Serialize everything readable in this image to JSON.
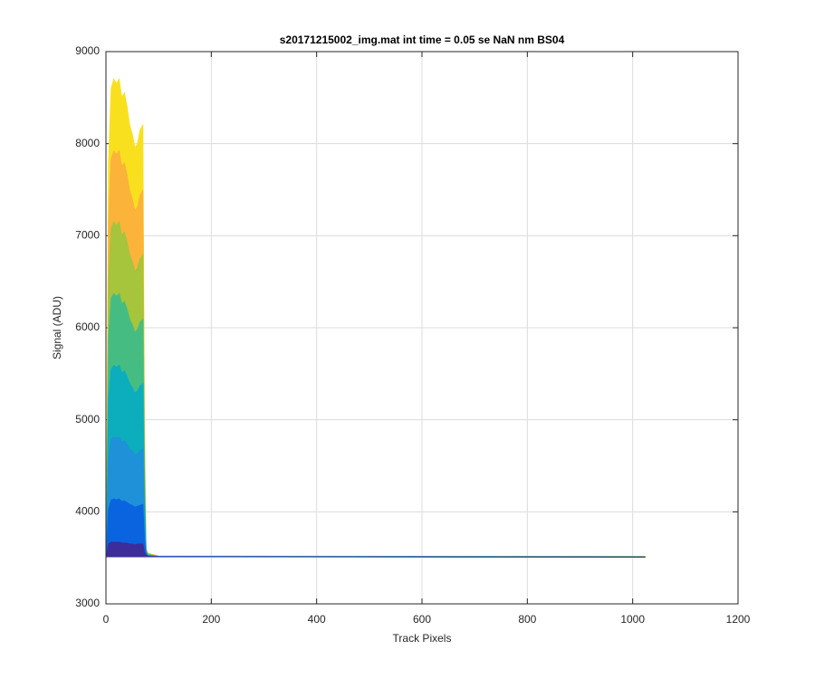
{
  "chart_data": {
    "type": "area",
    "title": "s20171215002_img.mat int time = 0.05 se  NaN nm BS04",
    "xlabel": "Track Pixels",
    "ylabel": "Signal (ADU)",
    "x": [
      1,
      5,
      10,
      15,
      20,
      25,
      30,
      35,
      40,
      45,
      50,
      55,
      60,
      65,
      70,
      73,
      76,
      80,
      100,
      1024
    ],
    "series": [
      {
        "color": "#f9e01e",
        "values": [
          3520,
          7800,
          8600,
          8700,
          8650,
          8700,
          8500,
          8550,
          8400,
          8200,
          8100,
          7950,
          8000,
          8150,
          8200,
          5000,
          3600,
          3550,
          3520,
          3515
        ]
      },
      {
        "color": "#fbb33a",
        "values": [
          3518,
          7160,
          7840,
          7920,
          7880,
          7920,
          7750,
          7790,
          7660,
          7490,
          7400,
          7270,
          7310,
          7440,
          7490,
          4780,
          3590,
          3545,
          3518,
          3514
        ]
      },
      {
        "color": "#a6c43c",
        "values": [
          3517,
          6520,
          7080,
          7150,
          7110,
          7150,
          7000,
          7040,
          6930,
          6790,
          6720,
          6610,
          6650,
          6750,
          6790,
          4560,
          3580,
          3540,
          3517,
          3513
        ]
      },
      {
        "color": "#45bd82",
        "values": [
          3516,
          5880,
          6320,
          6370,
          6340,
          6370,
          6260,
          6280,
          6200,
          6090,
          6030,
          5950,
          5980,
          6060,
          6090,
          4340,
          3570,
          3535,
          3516,
          3512
        ]
      },
      {
        "color": "#0cadbd",
        "values": [
          3515,
          5230,
          5550,
          5590,
          5570,
          5590,
          5510,
          5530,
          5470,
          5390,
          5350,
          5290,
          5310,
          5370,
          5390,
          4120,
          3560,
          3530,
          3515,
          3511
        ]
      },
      {
        "color": "#1f91d8",
        "values": [
          3514,
          4590,
          4790,
          4810,
          4800,
          4810,
          4760,
          4770,
          4730,
          4680,
          4660,
          4620,
          4630,
          4670,
          4680,
          3890,
          3550,
          3525,
          3514,
          3510
        ]
      },
      {
        "color": "#0a64e0",
        "values": [
          3513,
          4030,
          4130,
          4140,
          4130,
          4140,
          4110,
          4120,
          4100,
          4080,
          4070,
          4050,
          4060,
          4070,
          4080,
          3700,
          3540,
          3520,
          3513,
          3509
        ]
      },
      {
        "color": "#3d2d9b",
        "values": [
          3512,
          3650,
          3670,
          3670,
          3670,
          3670,
          3660,
          3660,
          3660,
          3650,
          3650,
          3640,
          3650,
          3650,
          3650,
          3560,
          3530,
          3515,
          3512,
          3508
        ]
      }
    ],
    "xlim": [
      0,
      1200
    ],
    "xticks": [
      0,
      200,
      400,
      600,
      800,
      1000,
      1200
    ],
    "ylim": [
      3000,
      9000
    ],
    "yticks": [
      3000,
      4000,
      5000,
      6000,
      7000,
      8000,
      9000
    ],
    "grid": true
  }
}
